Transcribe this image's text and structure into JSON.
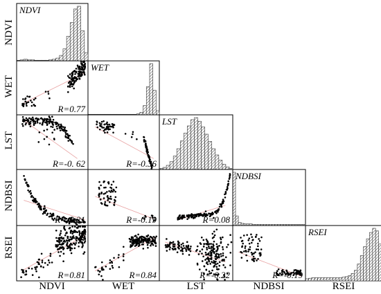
{
  "chart_data": {
    "type": "scatter",
    "variables": [
      "NDVI",
      "WET",
      "LST",
      "NDBSI",
      "RSEI"
    ],
    "hatch_color": "#555555",
    "point_color": "#000000",
    "trend_color": "#e8a0a0",
    "grid": false,
    "diagonal": {
      "NDVI": {
        "title": "NDVI",
        "histogram": [
          1,
          2,
          3,
          2,
          2,
          1,
          1,
          1,
          1,
          2,
          3,
          5,
          10,
          22,
          45,
          70,
          95,
          100,
          55,
          15
        ]
      },
      "WET": {
        "title": "WET",
        "histogram": [
          1,
          1,
          1,
          1,
          1,
          1,
          1,
          1,
          1,
          1,
          1,
          1,
          1,
          1,
          1,
          2,
          5,
          18,
          55,
          100,
          48,
          8
        ]
      },
      "LST": {
        "title": "LST",
        "histogram": [
          2,
          4,
          8,
          15,
          26,
          40,
          55,
          70,
          84,
          96,
          100,
          93,
          82,
          68,
          54,
          40,
          28,
          18,
          10,
          5,
          2
        ]
      },
      "NDBSI": {
        "title": "NDBSI",
        "histogram": [
          100,
          18,
          6,
          4,
          3,
          3,
          3,
          2,
          2,
          2,
          2,
          2,
          2,
          2,
          2,
          2,
          2,
          2,
          2,
          2,
          2,
          2,
          2,
          2,
          2,
          2
        ]
      },
      "RSEI": {
        "title": "RSEI",
        "histogram": [
          4,
          5,
          6,
          6,
          6,
          6,
          6,
          6,
          6,
          6,
          6,
          6,
          7,
          8,
          10,
          14,
          20,
          32,
          48,
          65,
          80,
          92,
          100,
          95,
          70
        ]
      }
    },
    "pairs": [
      {
        "row": "WET",
        "col": "NDVI",
        "r": "R=0.77",
        "points_key": "wet_ndvi"
      },
      {
        "row": "LST",
        "col": "NDVI",
        "r": "R=-0. 62",
        "points_key": "lst_ndvi"
      },
      {
        "row": "LST",
        "col": "WET",
        "r": "R=-0.36",
        "points_key": "lst_wet"
      },
      {
        "row": "NDBSI",
        "col": "NDVI",
        "r": "R=-0.21",
        "points_key": "ndbsi_ndvi"
      },
      {
        "row": "NDBSI",
        "col": "WET",
        "r": "R=-0.19",
        "points_key": "ndbsi_wet"
      },
      {
        "row": "NDBSI",
        "col": "LST",
        "r": "R=0.08",
        "points_key": "ndbsi_lst"
      },
      {
        "row": "RSEI",
        "col": "NDVI",
        "r": "R=0.81",
        "points_key": "rsei_ndvi"
      },
      {
        "row": "RSEI",
        "col": "WET",
        "r": "R=0.84",
        "points_key": "rsei_wet"
      },
      {
        "row": "RSEI",
        "col": "LST",
        "r": "R=-0.22",
        "points_key": "rsei_lst"
      },
      {
        "row": "RSEI",
        "col": "NDBSI",
        "r": "R=-0.19",
        "points_key": "rsei_ndbsi"
      }
    ],
    "row_labels": [
      "NDVI",
      "WET",
      "LST",
      "NDBSI",
      "RSEI"
    ],
    "col_labels": [
      "NDVI",
      "WET",
      "LST",
      "NDBSI",
      "RSEI"
    ]
  }
}
